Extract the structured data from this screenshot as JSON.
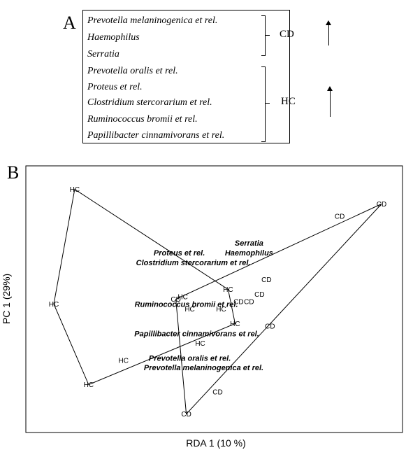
{
  "panel_a": {
    "letter": "A",
    "groups": [
      {
        "label": "CD",
        "taxa": [
          "Prevotella melaninogenica et rel.",
          "Haemophilus",
          "Serratia"
        ],
        "direction": "up"
      },
      {
        "label": "HC",
        "taxa": [
          "Prevotella oralis et rel.",
          "Proteus et rel.",
          "Clostridium stercorarium et rel.",
          "Ruminococcus bromii et rel.",
          "Papillibacter cinnamivorans et rel."
        ],
        "direction": "up"
      }
    ]
  },
  "panel_b": {
    "letter": "B"
  },
  "chart_data": {
    "type": "scatter",
    "title": "",
    "xlabel": "RDA 1 (10 %)",
    "ylabel": "PC 1 (29%)",
    "xlim": [
      0,
      10
    ],
    "ylim": [
      0,
      10
    ],
    "grid": false,
    "samples": [
      {
        "label": "HC",
        "x": 1.0,
        "y": 9.5
      },
      {
        "label": "HC",
        "x": 0.4,
        "y": 4.8
      },
      {
        "label": "HC",
        "x": 1.4,
        "y": 1.5
      },
      {
        "label": "HC",
        "x": 2.4,
        "y": 2.5
      },
      {
        "label": "HC",
        "x": 4.1,
        "y": 5.1
      },
      {
        "label": "HC",
        "x": 4.3,
        "y": 4.6
      },
      {
        "label": "HC",
        "x": 4.6,
        "y": 3.2
      },
      {
        "label": "HC",
        "x": 5.2,
        "y": 4.6
      },
      {
        "label": "HC",
        "x": 5.4,
        "y": 5.4
      },
      {
        "label": "HC",
        "x": 5.6,
        "y": 4.0
      },
      {
        "label": "CD",
        "x": 3.9,
        "y": 5.0
      },
      {
        "label": "CD",
        "x": 4.2,
        "y": 0.3
      },
      {
        "label": "CD",
        "x": 5.1,
        "y": 1.2
      },
      {
        "label": "CD",
        "x": 5.7,
        "y": 4.9
      },
      {
        "label": "CD",
        "x": 6.0,
        "y": 4.9
      },
      {
        "label": "CD",
        "x": 6.3,
        "y": 5.2
      },
      {
        "label": "CD",
        "x": 6.5,
        "y": 5.8
      },
      {
        "label": "CD",
        "x": 6.6,
        "y": 3.9
      },
      {
        "label": "CD",
        "x": 8.6,
        "y": 8.4
      },
      {
        "label": "CD",
        "x": 9.8,
        "y": 8.9
      }
    ],
    "hulls": [
      {
        "group": "HC",
        "points": [
          [
            1.0,
            9.5
          ],
          [
            5.4,
            5.4
          ],
          [
            5.6,
            4.0
          ],
          [
            1.4,
            1.5
          ],
          [
            0.4,
            4.8
          ]
        ]
      },
      {
        "group": "CD",
        "points": [
          [
            3.9,
            5.0
          ],
          [
            9.8,
            8.9
          ],
          [
            4.2,
            0.3
          ]
        ]
      }
    ],
    "species": [
      {
        "label": "Serratia",
        "x": 6.0,
        "y": 7.3
      },
      {
        "label": "Haemophilus",
        "x": 6.0,
        "y": 6.9
      },
      {
        "label": "Proteus et rel.",
        "x": 4.0,
        "y": 6.9
      },
      {
        "label": "Clostridium stercorarium et rel.",
        "x": 4.4,
        "y": 6.5
      },
      {
        "label": "Ruminococcus bromii et rel.",
        "x": 4.2,
        "y": 4.8
      },
      {
        "label": "Papillibacter cinnamivorans et rel.",
        "x": 4.5,
        "y": 3.6
      },
      {
        "label": "Prevotella oralis et rel.",
        "x": 4.3,
        "y": 2.6
      },
      {
        "label": "Prevotella melaninogenica et rel.",
        "x": 4.7,
        "y": 2.2
      }
    ]
  }
}
